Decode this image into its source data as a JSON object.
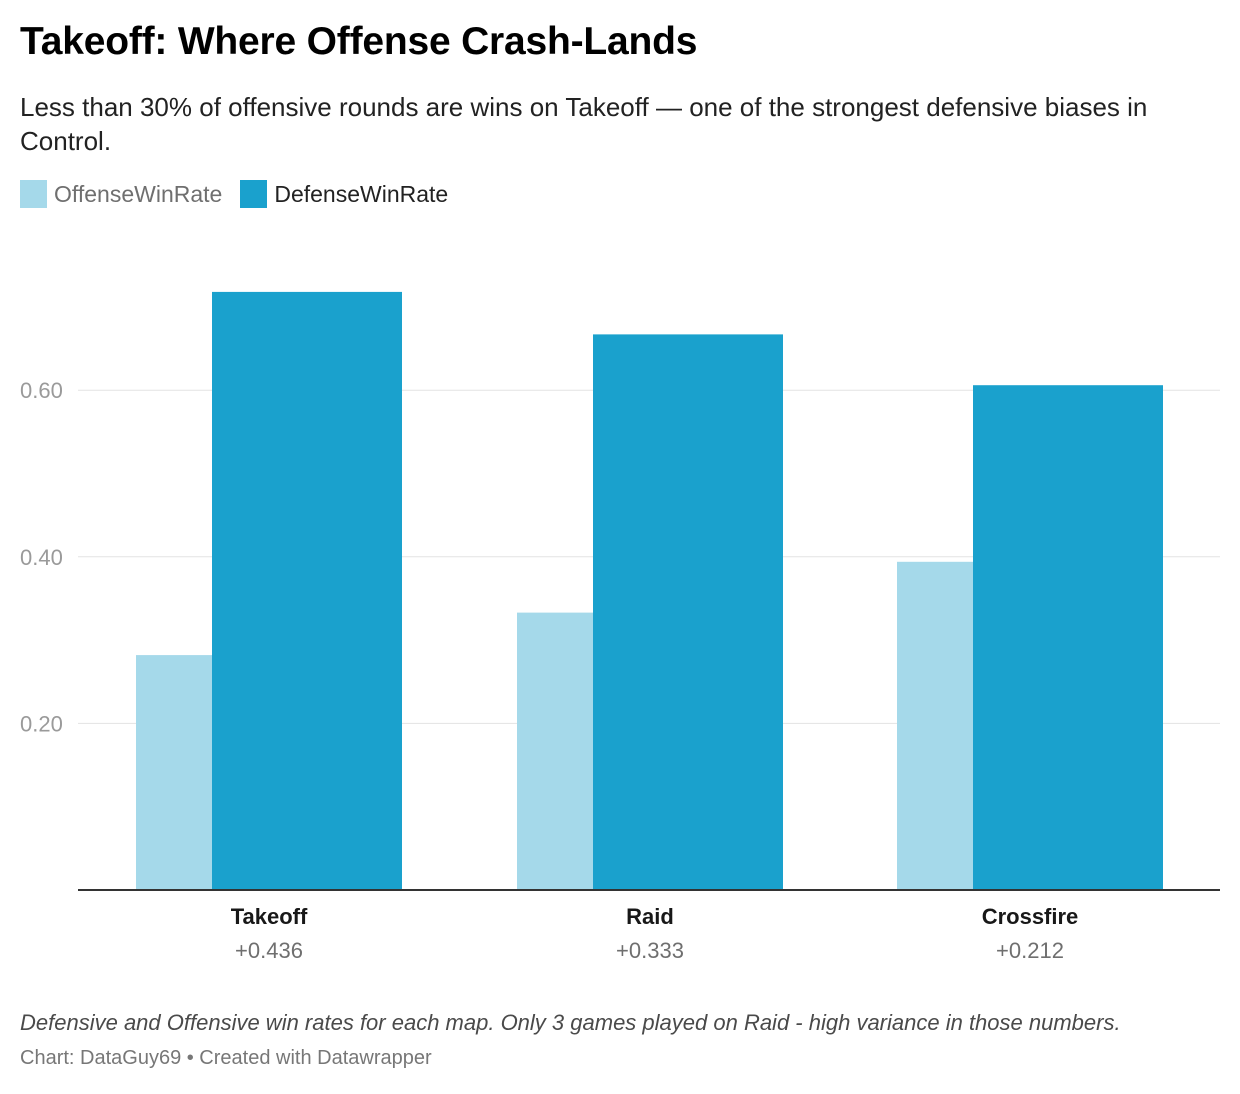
{
  "title": "Takeoff: Where Offense Crash-Lands",
  "subtitle": "Less than 30% of offensive rounds are wins on Takeoff — one of the strongest defensive biases in Control.",
  "legend": [
    {
      "label": "OffenseWinRate",
      "color": "#a5d9ea"
    },
    {
      "label": "DefenseWinRate",
      "color": "#1aa1cd"
    }
  ],
  "notes": "Defensive and Offensive win rates for each map. Only 3 games played on Raid - high variance in those numbers.",
  "source": "Chart: DataGuy69 • Created with Datawrapper",
  "chart_data": {
    "type": "bar",
    "categories": [
      "Takeoff",
      "Raid",
      "Crossfire"
    ],
    "category_sublabels": [
      "+0.436",
      "+0.333",
      "+0.212"
    ],
    "series": [
      {
        "name": "OffenseWinRate",
        "color": "#a5d9ea",
        "values": [
          0.282,
          0.333,
          0.394
        ]
      },
      {
        "name": "DefenseWinRate",
        "color": "#1aa1cd",
        "values": [
          0.718,
          0.667,
          0.606
        ]
      }
    ],
    "yticks": [
      0.2,
      0.4,
      0.6
    ],
    "ytick_labels": [
      "0.20",
      "0.40",
      "0.60"
    ],
    "ylim": [
      0,
      0.72
    ],
    "grid": true,
    "legend_position": "top-left"
  }
}
